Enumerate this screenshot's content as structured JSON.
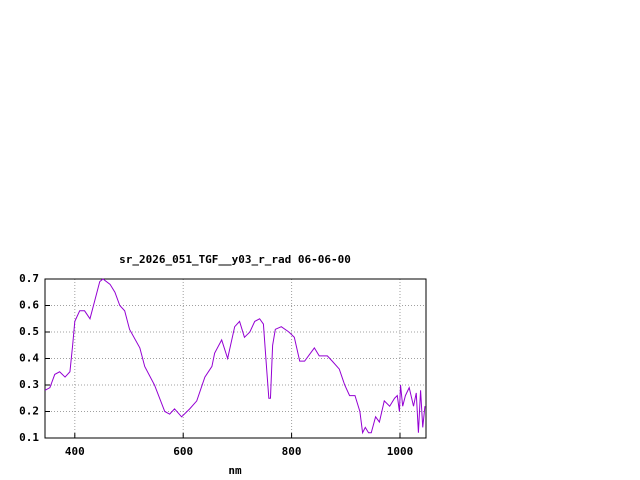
{
  "chart_data": {
    "type": "line",
    "title": "sr_2026_051_TGF__y03_r_rad 06-06-00",
    "x_label": "nm",
    "xlim": [
      345,
      1048
    ],
    "ylim": [
      0.1,
      0.7
    ],
    "xticks": [
      400,
      600,
      800,
      1000
    ],
    "yticks": [
      0.1,
      0.2,
      0.3,
      0.4,
      0.5,
      0.6,
      0.7
    ],
    "grid": true,
    "series": [
      {
        "color": "#9400d3",
        "x": [
          345,
          354,
          363,
          372,
          382,
          391,
          396,
          400,
          409,
          418,
          428,
          437,
          446,
          452,
          465,
          474,
          483,
          492,
          501,
          520,
          529,
          547,
          566,
          575,
          584,
          597,
          612,
          625,
          640,
          653,
          658,
          671,
          682,
          695,
          704,
          713,
          723,
          732,
          741,
          748,
          754,
          758,
          761,
          765,
          770,
          781,
          795,
          805,
          815,
          824,
          842,
          851,
          866,
          875,
          888,
          898,
          907,
          917,
          926,
          931,
          936,
          942,
          947,
          955,
          962,
          971,
          981,
          990,
          995,
          999,
          1001,
          1005,
          1010,
          1017,
          1025,
          1030,
          1034,
          1038,
          1042,
          1046
        ],
        "values": [
          0.28,
          0.29,
          0.34,
          0.35,
          0.33,
          0.35,
          0.45,
          0.54,
          0.58,
          0.58,
          0.55,
          0.62,
          0.69,
          0.7,
          0.68,
          0.65,
          0.6,
          0.58,
          0.51,
          0.44,
          0.37,
          0.3,
          0.2,
          0.19,
          0.21,
          0.18,
          0.21,
          0.24,
          0.33,
          0.37,
          0.42,
          0.47,
          0.4,
          0.52,
          0.54,
          0.48,
          0.5,
          0.54,
          0.55,
          0.53,
          0.36,
          0.25,
          0.25,
          0.45,
          0.51,
          0.52,
          0.5,
          0.48,
          0.39,
          0.39,
          0.44,
          0.41,
          0.41,
          0.39,
          0.36,
          0.3,
          0.26,
          0.26,
          0.2,
          0.12,
          0.14,
          0.12,
          0.12,
          0.18,
          0.16,
          0.24,
          0.22,
          0.25,
          0.26,
          0.2,
          0.3,
          0.22,
          0.26,
          0.29,
          0.22,
          0.27,
          0.12,
          0.28,
          0.14,
          0.22
        ]
      }
    ]
  }
}
